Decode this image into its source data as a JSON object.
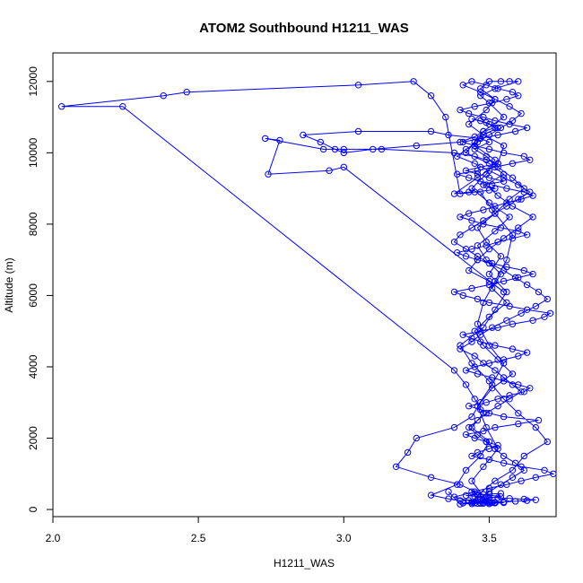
{
  "chart_data": {
    "type": "line",
    "title": "ATOM2 Southbound H1211_WAS",
    "xlabel": "H1211_WAS",
    "ylabel": "Altitude (m)",
    "xlim": [
      2.0,
      3.73
    ],
    "ylim": [
      -200,
      12800
    ],
    "xticks": [
      2.0,
      2.5,
      3.0,
      3.5
    ],
    "xtick_labels": [
      "2.0",
      "2.5",
      "3.0",
      "3.5"
    ],
    "yticks": [
      0,
      2000,
      4000,
      6000,
      8000,
      10000,
      12000
    ],
    "ytick_labels": [
      "0",
      "2000",
      "4000",
      "6000",
      "8000",
      "10000",
      "12000"
    ],
    "series_color": "#0000ff",
    "marker": "open-circle",
    "series": [
      {
        "name": "H1211_WAS",
        "x": [
          3.36,
          3.4,
          3.47,
          3.44,
          3.5,
          3.45,
          3.48,
          3.52,
          3.55,
          3.5,
          3.44,
          3.48,
          3.53,
          3.49,
          3.46,
          3.51,
          3.55,
          3.5,
          3.46,
          3.48,
          3.52,
          3.56,
          3.58,
          3.51,
          3.47,
          3.43,
          3.38,
          3.46,
          3.53,
          3.55,
          3.48,
          3.43,
          3.49,
          3.52,
          3.47,
          3.5,
          3.54,
          3.57,
          3.6,
          3.52,
          3.47,
          3.5,
          3.55,
          3.48,
          3.45,
          3.52,
          3.49,
          3.44,
          3.5,
          3.57,
          3.52,
          3.46,
          3.49,
          3.54,
          3.51,
          3.56,
          3.5,
          3.45,
          3.48,
          3.53,
          3.58,
          3.51,
          3.47,
          3.44,
          3.38,
          3.25,
          3.22,
          3.18,
          3.3,
          3.4,
          3.45,
          3.38,
          3.43,
          3.48,
          3.52,
          3.46,
          3.5,
          3.55,
          3.49,
          3.46,
          3.52,
          3.58,
          3.62,
          3.7,
          3.66,
          3.6,
          3.55,
          3.5,
          3.44,
          3.4,
          3.48,
          3.52,
          3.56,
          3.5,
          3.54,
          3.49,
          3.46,
          3.52,
          3.57,
          3.62,
          3.58,
          3.53,
          3.49,
          3.45,
          3.5,
          3.47,
          3.36,
          3.3,
          3.05,
          2.86,
          2.92,
          2.97,
          3.0,
          3.1,
          3.25,
          3.4,
          3.45,
          3.48,
          3.52,
          3.5,
          3.47,
          3.44,
          3.49,
          3.53,
          3.48,
          3.45,
          3.42,
          3.5,
          3.55,
          3.49,
          3.53,
          3.58,
          3.65,
          3.6,
          3.55,
          3.5,
          3.46,
          3.43,
          3.5,
          3.55,
          3.0,
          2.95,
          2.74,
          2.78,
          2.73,
          2.93,
          3.0,
          3.13,
          3.38,
          3.45,
          3.49,
          3.53,
          3.47,
          3.42,
          3.46,
          3.5,
          3.55,
          3.48,
          3.52,
          3.5,
          3.45,
          3.4,
          3.35,
          3.3,
          3.24,
          3.05,
          2.46,
          2.38,
          2.03,
          2.24,
          3.38,
          3.42,
          3.45,
          3.48,
          3.44,
          3.5,
          3.47,
          3.42,
          3.39,
          3.3,
          3.36,
          3.4,
          3.46,
          3.5,
          3.54,
          3.48,
          3.44,
          3.5,
          3.56,
          3.61,
          3.66,
          3.72,
          3.69,
          3.61,
          3.55,
          3.5,
          3.44,
          3.46,
          3.5,
          3.53,
          3.49,
          3.45,
          3.42,
          3.48,
          3.52,
          3.6,
          3.67,
          3.55,
          3.5,
          3.47,
          3.43,
          3.49,
          3.53,
          3.57,
          3.62,
          3.64,
          3.6,
          3.55,
          3.51,
          3.46,
          3.42,
          3.45,
          3.5,
          3.55,
          3.6,
          3.63,
          3.58,
          3.52,
          3.47,
          3.44,
          3.41,
          3.47,
          3.53,
          3.58,
          3.65,
          3.69,
          3.71,
          3.63,
          3.57,
          3.5,
          3.46,
          3.41,
          3.38,
          3.44,
          3.5,
          3.55,
          3.6,
          3.65,
          3.62,
          3.56,
          3.51,
          3.46,
          3.42,
          3.39,
          3.44,
          3.49,
          3.53,
          3.58,
          3.63,
          3.6,
          3.54,
          3.48,
          3.44,
          3.4,
          3.43,
          3.48,
          3.52,
          3.56,
          3.61,
          3.65,
          3.62,
          3.56,
          3.51,
          3.47,
          3.43,
          3.39,
          3.46,
          3.52,
          3.58,
          3.64,
          3.62,
          3.55,
          3.5,
          3.45,
          3.41,
          3.47,
          3.53,
          3.59,
          3.63,
          3.57,
          3.52,
          3.48,
          3.43,
          3.4,
          3.45,
          3.51,
          3.56,
          3.6,
          3.58,
          3.53,
          3.49,
          3.44,
          3.41,
          3.47,
          3.52,
          3.57,
          3.61,
          3.58,
          3.54,
          3.5,
          3.46,
          3.42,
          3.39,
          3.45,
          3.5,
          3.55,
          3.6,
          3.64,
          3.6,
          3.56,
          3.52,
          3.48,
          3.44,
          3.4,
          3.38,
          3.42,
          3.46,
          3.5,
          3.55,
          3.59,
          3.63,
          3.67,
          3.7,
          3.66,
          3.61,
          3.56,
          3.51,
          3.47,
          3.44,
          3.4,
          3.45,
          3.48,
          3.52,
          3.55,
          3.58,
          3.61,
          3.57,
          3.53,
          3.49,
          3.46,
          3.43,
          3.46,
          3.49,
          3.52,
          3.55,
          3.59,
          3.62,
          3.58,
          3.54,
          3.5,
          3.47,
          3.44,
          3.41,
          3.44,
          3.47,
          3.51,
          3.55,
          3.59,
          3.63,
          3.66,
          3.62,
          3.57,
          3.53,
          3.49,
          3.45,
          3.42,
          3.46,
          3.5,
          3.54
        ],
        "y": [
          500,
          150,
          180,
          200,
          220,
          180,
          170,
          200,
          190,
          160,
          800,
          1200,
          1700,
          2300,
          2900,
          3500,
          4100,
          4600,
          5200,
          5800,
          6400,
          7000,
          7700,
          8400,
          8900,
          8900,
          8850,
          9300,
          9700,
          10200,
          10500,
          10800,
          11200,
          11500,
          11800,
          12000,
          12000,
          12000,
          12000,
          11800,
          11600,
          11400,
          11000,
          10600,
          10200,
          9800,
          9400,
          9000,
          8600,
          8200,
          7800,
          7400,
          7000,
          6600,
          6200,
          5800,
          5400,
          5000,
          4600,
          4200,
          3800,
          3400,
          3000,
          2600,
          2300,
          2000,
          1600,
          1200,
          900,
          700,
          500,
          350,
          250,
          200,
          180,
          170,
          190,
          210,
          230,
          400,
          800,
          1100,
          1500,
          1900,
          2300,
          2700,
          3100,
          3600,
          4100,
          4600,
          5100,
          5600,
          6100,
          6600,
          7100,
          7500,
          7900,
          8300,
          8700,
          9000,
          9300,
          9600,
          9900,
          10100,
          10300,
          10400,
          10500,
          10600,
          10600,
          10500,
          10300,
          10100,
          10000,
          10100,
          10200,
          10300,
          10450,
          10600,
          10700,
          10800,
          10900,
          10950,
          10850,
          10700,
          10500,
          10300,
          10000,
          9700,
          9400,
          9100,
          8800,
          8500,
          8200,
          7900,
          7600,
          7300,
          7000,
          6700,
          6400,
          6100,
          9600,
          9500,
          9400,
          10350,
          10400,
          10100,
          10100,
          10100,
          10000,
          9900,
          9800,
          9700,
          9600,
          9500,
          9400,
          9300,
          9200,
          9100,
          9000,
          8950,
          8900,
          8850,
          11000,
          11600,
          12000,
          11900,
          11700,
          11600,
          11300,
          11300,
          3900,
          3500,
          3100,
          2700,
          2300,
          1900,
          1500,
          1100,
          700,
          400,
          300,
          250,
          280,
          320,
          360,
          420,
          500,
          600,
          700,
          800,
          900,
          1000,
          1100,
          1200,
          1300,
          1400,
          1500,
          1600,
          1700,
          1800,
          1900,
          2000,
          2100,
          2200,
          2300,
          2400,
          2500,
          2600,
          2700,
          2800,
          2900,
          3000,
          3100,
          3200,
          3300,
          3400,
          3500,
          3600,
          3700,
          3800,
          3900,
          4000,
          4100,
          4200,
          4300,
          4400,
          4500,
          4600,
          4700,
          4800,
          4900,
          5000,
          5100,
          5200,
          5300,
          5400,
          5500,
          5600,
          5700,
          5800,
          5900,
          6000,
          6100,
          6200,
          6300,
          6400,
          6500,
          6600,
          6700,
          6800,
          6900,
          7000,
          7100,
          7200,
          7300,
          7400,
          7500,
          7600,
          7700,
          7800,
          7900,
          8000,
          8100,
          8200,
          8300,
          8400,
          8500,
          8600,
          8700,
          8800,
          8900,
          9000,
          9100,
          9200,
          9300,
          9400,
          9500,
          9600,
          9700,
          9800,
          9900,
          10000,
          10100,
          10200,
          10300,
          10400,
          10500,
          10600,
          10700,
          10800,
          10900,
          11000,
          11100,
          11200,
          11300,
          11400,
          11500,
          11600,
          11700,
          11800,
          11900,
          12000,
          11900,
          11700,
          11500,
          11300,
          11100,
          10900,
          10700,
          10500,
          10300,
          10100,
          9900,
          9700,
          9500,
          9300,
          9100,
          8900,
          8700,
          8500,
          8300,
          8100,
          7900,
          7700,
          7500,
          7300,
          7100,
          6900,
          6700,
          6500,
          6300,
          6100,
          5900,
          5700,
          5500,
          5300,
          5100,
          4900,
          4700,
          4500,
          4300,
          4100,
          3900,
          3700,
          3500,
          3300,
          3100,
          2900,
          2700,
          2500,
          2300,
          2100,
          1900,
          1700,
          1500,
          1300,
          1100,
          900,
          700,
          500,
          300,
          200,
          180,
          160,
          170,
          190,
          210,
          230,
          250,
          270,
          290,
          310,
          330,
          350,
          370,
          390,
          410,
          430,
          450
        ]
      }
    ]
  }
}
